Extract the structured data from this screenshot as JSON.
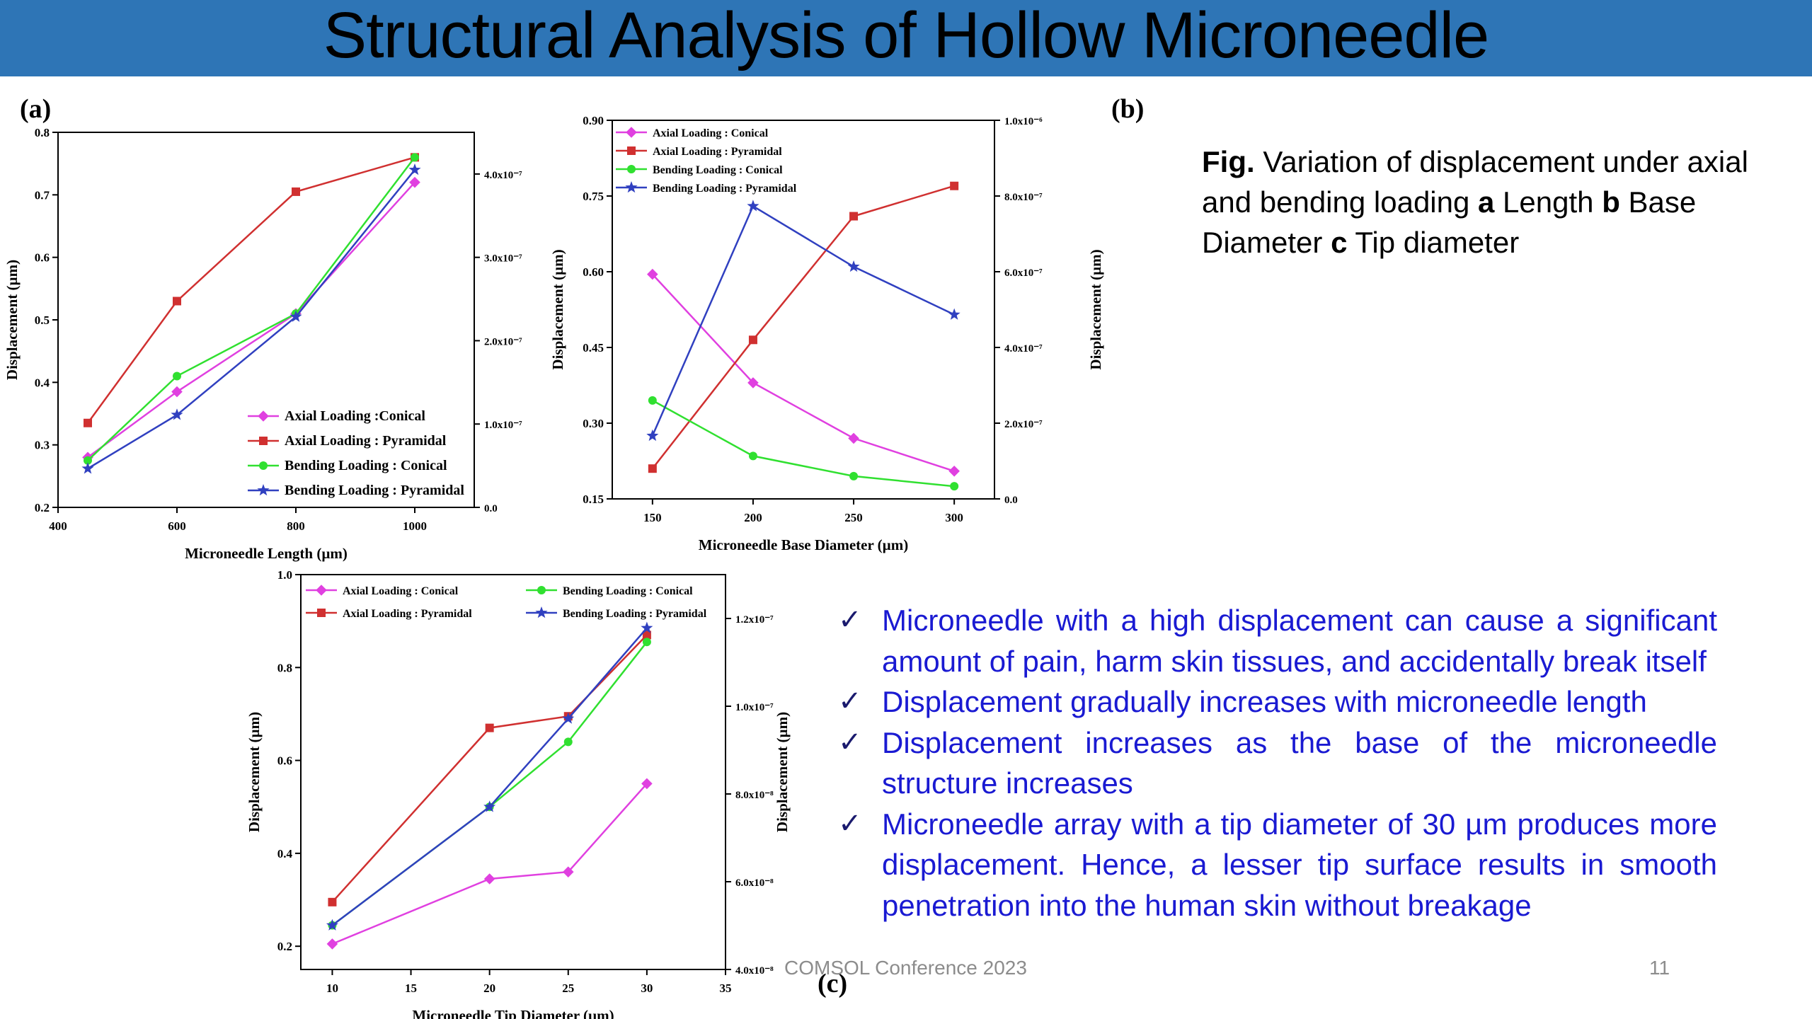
{
  "title": "Structural Analysis of Hollow Microneedle",
  "caption": {
    "fig_label": "Fig.",
    "text_1": " Variation of displacement under axial and bending loading ",
    "a": "a",
    "text_2": " Length ",
    "b": "b",
    "text_3": " Base Diameter ",
    "c": "c",
    "text_4": " Tip diameter"
  },
  "bullets": [
    "Microneedle with a high displacement can cause a significant amount of pain, harm skin tissues, and accidentally break itself",
    "Displacement gradually increases with microneedle length",
    "Displacement increases as the base of the microneedle structure increases",
    "Microneedle array with a tip diameter of 30 µm produces more displacement. Hence, a lesser tip surface results in smooth penetration into the human skin without breakage"
  ],
  "footer": {
    "conference": "COMSOL Conference 2023",
    "page": "11"
  },
  "colors": {
    "title_bar": "#2e75b6",
    "bullet_text": "#1a1ad2",
    "axial_conical": "#e040e0",
    "axial_pyramidal": "#d03030",
    "bending_conical": "#30e030",
    "bending_pyramidal": "#3040c0"
  },
  "chart_data": [
    {
      "id": "a",
      "panel_label": "(a)",
      "type": "line",
      "xlabel": "Microneedle Length (µm)",
      "ylabel": "Displacement (µm)",
      "y2label": "",
      "xlim": [
        400,
        1100
      ],
      "ylim": [
        0.2,
        0.8
      ],
      "y2lim": [
        0,
        4.5e-07
      ],
      "xticks": [
        "400",
        "600",
        "800",
        "1000"
      ],
      "yticks": [
        "0.2",
        "0.3",
        "0.4",
        "0.5",
        "0.6",
        "0.7",
        "0.8"
      ],
      "y2ticks": [
        "0.0",
        "1.0x10⁻⁷",
        "2.0x10⁻⁷",
        "3.0x10⁻⁷",
        "4.0x10⁻⁷"
      ],
      "legend_position": "bottom-right",
      "series": [
        {
          "name": "Axial Loading :Conical",
          "marker": "diamond",
          "color": "#e040e0",
          "x": [
            450,
            600,
            800,
            1000
          ],
          "y": [
            0.28,
            0.385,
            0.51,
            0.72
          ]
        },
        {
          "name": "Axial Loading : Pyramidal",
          "marker": "square",
          "color": "#d03030",
          "x": [
            450,
            600,
            800,
            1000
          ],
          "y": [
            0.335,
            0.53,
            0.705,
            0.76
          ]
        },
        {
          "name": "Bending Loading : Conical",
          "marker": "circle",
          "color": "#30e030",
          "x": [
            450,
            600,
            800,
            1000
          ],
          "y": [
            0.275,
            0.41,
            0.51,
            0.76
          ]
        },
        {
          "name": "Bending Loading : Pyramidal",
          "marker": "star",
          "color": "#3040c0",
          "x": [
            450,
            600,
            800,
            1000
          ],
          "y": [
            0.262,
            0.348,
            0.505,
            0.74
          ]
        }
      ]
    },
    {
      "id": "b",
      "panel_label": "(b)",
      "type": "line",
      "xlabel": "Microneedle Base Diameter (µm)",
      "ylabel": "Displacement (µm)",
      "y2label": "Displacement (µm)",
      "xlim": [
        130,
        320
      ],
      "ylim": [
        0.15,
        0.9
      ],
      "y2lim": [
        0,
        1e-06
      ],
      "xticks": [
        "150",
        "200",
        "250",
        "300"
      ],
      "yticks": [
        "0.15",
        "0.30",
        "0.45",
        "0.60",
        "0.75",
        "0.90"
      ],
      "y2ticks": [
        "0.0",
        "2.0x10⁻⁷",
        "4.0x10⁻⁷",
        "6.0x10⁻⁷",
        "8.0x10⁻⁷",
        "1.0x10⁻⁶"
      ],
      "legend_position": "top-left",
      "series": [
        {
          "name": "Axial Loading : Conical",
          "marker": "diamond",
          "color": "#e040e0",
          "x": [
            150,
            200,
            250,
            300
          ],
          "y": [
            0.595,
            0.38,
            0.27,
            0.205
          ]
        },
        {
          "name": "Axial Loading : Pyramidal",
          "marker": "square",
          "color": "#d03030",
          "x": [
            150,
            200,
            250,
            300
          ],
          "y": [
            0.21,
            0.465,
            0.71,
            0.77
          ]
        },
        {
          "name": "Bending Loading : Conical",
          "marker": "circle",
          "color": "#30e030",
          "x": [
            150,
            200,
            250,
            300
          ],
          "y": [
            0.345,
            0.235,
            0.195,
            0.175
          ]
        },
        {
          "name": "Bending Loading : Pyramidal",
          "marker": "star",
          "color": "#3040c0",
          "x": [
            150,
            200,
            250,
            300
          ],
          "y": [
            0.275,
            0.73,
            0.61,
            0.515
          ]
        }
      ]
    },
    {
      "id": "c",
      "panel_label": "(c)",
      "type": "line",
      "xlabel": "Microneedle Tip Diameter (µm)",
      "ylabel": "Displacement (µm)",
      "y2label": "Displacement (µm)",
      "xlim": [
        8,
        35
      ],
      "ylim": [
        0.15,
        1.0
      ],
      "y2lim": [
        4e-08,
        1.3e-07
      ],
      "xticks": [
        "10",
        "15",
        "20",
        "25",
        "30",
        "35"
      ],
      "yticks": [
        "0.2",
        "0.4",
        "0.6",
        "0.8",
        "1.0"
      ],
      "y2ticks": [
        "4.0x10⁻⁸",
        "6.0x10⁻⁸",
        "8.0x10⁻⁸",
        "1.0x10⁻⁷",
        "1.2x10⁻⁷"
      ],
      "legend_position": "top",
      "series": [
        {
          "name": "Axial Loading : Conical",
          "marker": "diamond",
          "color": "#e040e0",
          "x": [
            10,
            20,
            25,
            30
          ],
          "y": [
            0.205,
            0.345,
            0.36,
            0.55
          ]
        },
        {
          "name": "Axial Loading : Pyramidal",
          "marker": "square",
          "color": "#d03030",
          "x": [
            10,
            20,
            25,
            30
          ],
          "y": [
            0.295,
            0.67,
            0.695,
            0.87
          ]
        },
        {
          "name": "Bending Loading : Conical",
          "marker": "circle",
          "color": "#30e030",
          "x": [
            10,
            20,
            25,
            30
          ],
          "y": [
            0.245,
            0.5,
            0.64,
            0.855
          ]
        },
        {
          "name": "Bending Loading : Pyramidal",
          "marker": "star",
          "color": "#3040c0",
          "x": [
            10,
            20,
            25,
            30
          ],
          "y": [
            0.245,
            0.5,
            0.69,
            0.885
          ]
        }
      ]
    }
  ]
}
